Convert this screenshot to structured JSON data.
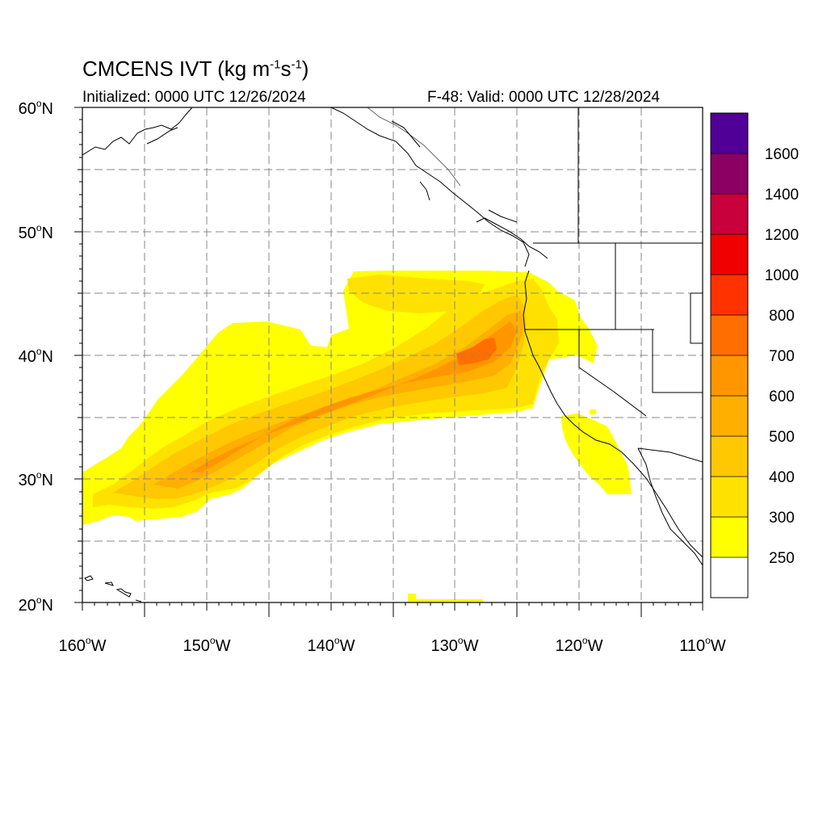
{
  "title": {
    "main": "CMCENS IVT (kg m",
    "sup1": "-1",
    "mid": "s",
    "sup2": "-1",
    "end": ")"
  },
  "subtitle_left": "Initialized: 0000 UTC 12/26/2024",
  "subtitle_right": "F-48: Valid: 0000 UTC 12/28/2024",
  "map": {
    "lon_range": [
      -160,
      -110
    ],
    "lat_range": [
      20,
      60
    ],
    "lat_ticks": [
      {
        "value": 60,
        "num": "60",
        "hemi": "N"
      },
      {
        "value": 50,
        "num": "50",
        "hemi": "N"
      },
      {
        "value": 40,
        "num": "40",
        "hemi": "N"
      },
      {
        "value": 30,
        "num": "30",
        "hemi": "N"
      },
      {
        "value": 20,
        "num": "20",
        "hemi": "N"
      }
    ],
    "lon_ticks": [
      {
        "value": -160,
        "num": "160",
        "hemi": "W"
      },
      {
        "value": -150,
        "num": "150",
        "hemi": "W"
      },
      {
        "value": -140,
        "num": "140",
        "hemi": "W"
      },
      {
        "value": -130,
        "num": "130",
        "hemi": "W"
      },
      {
        "value": -120,
        "num": "120",
        "hemi": "W"
      },
      {
        "value": -110,
        "num": "110",
        "hemi": "W"
      }
    ],
    "grid_lines": "dashed, every 5 degrees"
  },
  "colorbar": {
    "labels": [
      "250",
      "300",
      "400",
      "500",
      "600",
      "700",
      "800",
      "1000",
      "1200",
      "1400",
      "1600"
    ],
    "colors_bottom_to_top": [
      "#ffffff",
      "#ffff00",
      "#ffe100",
      "#ffc800",
      "#ffaf00",
      "#ff9600",
      "#ff6e00",
      "#ff3200",
      "#f00000",
      "#c8003c",
      "#8c0064",
      "#500096"
    ]
  }
}
